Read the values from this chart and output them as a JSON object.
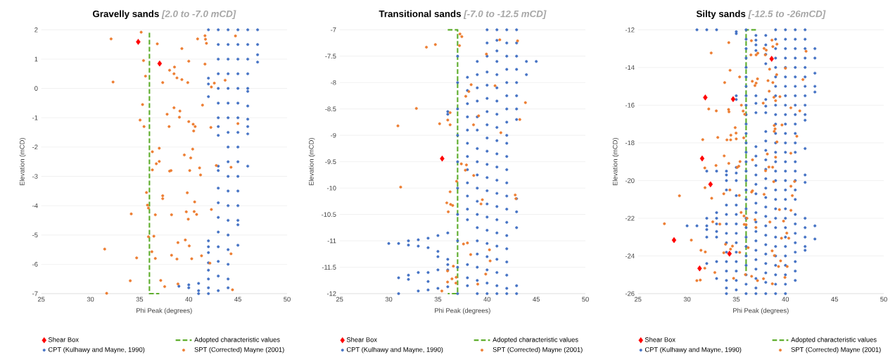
{
  "chart_data": [
    {
      "type": "scatter",
      "title": "Gravelly sands",
      "subtitle": "[2.0 to -7.0 mCD]",
      "xlabel": "Phi Peak (degrees)",
      "ylabel": "Elevation (mCD)",
      "xlim": [
        25,
        50
      ],
      "xticks": [
        25,
        30,
        35,
        40,
        45,
        50
      ],
      "ylim": [
        -7,
        2
      ],
      "yticks": [
        -7,
        -6,
        -5,
        -4,
        -3,
        -2,
        -1,
        0,
        1,
        2
      ],
      "grid": "y",
      "legend": "bottom",
      "series": [
        {
          "name": "Shear Box",
          "color": "#ff0000",
          "type": "scatter",
          "marker": "diamond",
          "x": [
            34.86,
            37.04
          ],
          "values": [
            1.59,
            0.85
          ]
        },
        {
          "name": "Adopted characteristic values",
          "color": "#5fae2e",
          "type": "line",
          "line_style": "dashed",
          "marker": "none",
          "x": [
            36,
            36,
            37
          ],
          "values": [
            1.9,
            -7,
            -7
          ]
        },
        {
          "name": "CPT (Kulhawy and Mayne, 1990)",
          "color": "#4472c4",
          "type": "scatter",
          "marker": "circle",
          "x": [
            39,
            40,
            40,
            41,
            41,
            41,
            42,
            42,
            42,
            42,
            42,
            42,
            42,
            42,
            42,
            42,
            42,
            42,
            43,
            43,
            43,
            43,
            43,
            43,
            43,
            43,
            43,
            43,
            43,
            43,
            43,
            43,
            43,
            43,
            43,
            43,
            43,
            44,
            44,
            44,
            44,
            44,
            44,
            44,
            44,
            44,
            44,
            44,
            44,
            44,
            44,
            44,
            44,
            44,
            44,
            44,
            45,
            45,
            45,
            45,
            45,
            45,
            45,
            45,
            45,
            45,
            45,
            45,
            45,
            45,
            45,
            45,
            46,
            46,
            46,
            46,
            46,
            46,
            46,
            46,
            46,
            46,
            46,
            47,
            47,
            47,
            47
          ],
          "values": [
            -6.75,
            -6.7,
            -6.8,
            -6.65,
            -6.9,
            -7,
            2,
            0.35,
            0.15,
            -0.28,
            -5.2,
            -5.4,
            -5.6,
            -5.95,
            -6.2,
            -6.5,
            -6.8,
            -7,
            2,
            1.5,
            1,
            0.5,
            0,
            -0.5,
            -1,
            -1.3,
            -1.6,
            -2.65,
            -2.8,
            -3.4,
            -3.9,
            -4.4,
            -4.9,
            -5.4,
            -5.9,
            -6.4,
            -6.9,
            2,
            1.5,
            1,
            0.5,
            0,
            -0.5,
            -1,
            -1.5,
            -2,
            -2.5,
            -3,
            -3.5,
            -4,
            -4.5,
            -5,
            -5.5,
            -6,
            -6.5,
            -6.8,
            2,
            1.5,
            1,
            0.5,
            0,
            -0.5,
            -1,
            -1.5,
            -2,
            -2.5,
            -3,
            -3.5,
            -4,
            -4.5,
            -4.65,
            -5.35,
            2,
            1.5,
            1,
            0.5,
            0,
            -0.1,
            -0.6,
            -1.05,
            -1.3,
            -1.55,
            -2.65,
            2,
            1.5,
            1.15,
            0.9
          ]
        },
        {
          "name": "SPT (Corrected) Mayne (2001)",
          "color": "#ed7d31",
          "type": "scatter",
          "marker": "circle",
          "x": [
            35.16,
            32.1,
            36.8,
            39.3,
            35.4,
            40.0,
            41.65,
            40.9,
            41.65,
            41.7,
            41.8,
            44.75,
            38.05,
            38.55,
            38.5,
            38.8,
            39.3,
            35.6,
            32.3,
            37.35,
            39.9,
            42.6,
            42.3,
            43.7,
            35.3,
            41.4,
            38.5,
            39.1,
            37.8,
            39.05,
            35.05,
            40.0,
            40.45,
            40.65,
            40.5,
            35.45,
            38.0,
            42.25,
            45.0,
            37.0,
            40.4,
            36.3,
            39.55,
            40.2,
            37.0,
            36.7,
            36.3,
            38.05,
            38.2,
            40.1,
            41.1,
            41.2,
            42.8,
            44.3,
            35.7,
            39.85,
            37.35,
            37.35,
            40.6,
            35.8,
            35.9,
            42.3,
            34.15,
            36.6,
            38.25,
            39.75,
            40.55,
            40.8,
            39.95,
            35.9,
            36.45,
            38.9,
            39.65,
            40.05,
            31.45,
            36.25,
            44.3,
            34.7,
            36.6,
            38.25,
            38.8,
            40.3,
            41.3,
            42.15,
            34.05,
            37.15,
            37.55,
            38.9,
            44.45,
            31.65
          ],
          "values": [
            1.92,
            1.69,
            1.52,
            1.36,
            0.95,
            0.93,
            0.83,
            1.69,
            1.8,
            1.68,
            1.54,
            1.79,
            0.62,
            0.73,
            0.5,
            0.36,
            0.3,
            0.42,
            0.22,
            0.2,
            0.2,
            0.18,
            0.05,
            0.28,
            -0.55,
            -0.57,
            -0.66,
            -0.77,
            -0.88,
            -0.98,
            -1.08,
            -1.13,
            -1.22,
            -1.3,
            -1.45,
            -1.3,
            -1.3,
            -1.33,
            -1.2,
            -2.04,
            -2.07,
            -2.16,
            -2.27,
            -2.37,
            -2.49,
            -2.57,
            -2.78,
            -2.82,
            -2.8,
            -2.8,
            -2.71,
            -2.95,
            -2.63,
            -2.69,
            -3.55,
            -3.56,
            -3.66,
            -3.76,
            -3.87,
            -3.98,
            -4.08,
            -4.13,
            -4.28,
            -4.31,
            -4.31,
            -4.21,
            -4.2,
            -4.3,
            -4.46,
            -5.06,
            -5.04,
            -5.26,
            -5.17,
            -5.37,
            -5.48,
            -5.57,
            -5.64,
            -5.78,
            -5.8,
            -5.69,
            -5.82,
            -5.81,
            -5.71,
            -5.96,
            -6.56,
            -6.55,
            -6.76,
            -6.67,
            -6.87,
            -6.99
          ]
        }
      ]
    },
    {
      "type": "scatter",
      "title": "Transitional sands",
      "subtitle": "[-7.0 to -12.5 mCD]",
      "xlabel": "Phi Peak (degrees)",
      "ylabel": "Elevation (mCD)",
      "xlim": [
        25,
        50
      ],
      "xticks": [
        25,
        30,
        35,
        40,
        45,
        50
      ],
      "ylim": [
        -12,
        -7
      ],
      "yticks": [
        -12,
        -11.5,
        -11,
        -10.5,
        -10,
        -9.5,
        -9,
        -8.5,
        -8,
        -7.5,
        -7
      ],
      "grid": "y",
      "legend": "bottom",
      "series": [
        {
          "name": "Shear Box",
          "color": "#ff0000",
          "type": "scatter",
          "marker": "diamond",
          "x": [
            35.43
          ],
          "values": [
            -9.44
          ]
        },
        {
          "name": "Adopted characteristic values",
          "color": "#5fae2e",
          "type": "line",
          "line_style": "dashed",
          "marker": "none",
          "x": [
            36,
            37,
            37,
            36
          ],
          "values": [
            -7,
            -7,
            -12,
            -12
          ]
        },
        {
          "name": "CPT (Kulhawy and Mayne, 1990)",
          "color": "#4472c4",
          "type": "scatter",
          "marker": "circle",
          "x": [
            30,
            31,
            31,
            31,
            32,
            32,
            32,
            32,
            33,
            33,
            33,
            33,
            34,
            34,
            34,
            34,
            34,
            35,
            35,
            35,
            35,
            35,
            36,
            36,
            36,
            36,
            36,
            36,
            36,
            37,
            37,
            37,
            37,
            37,
            37,
            37,
            37,
            37,
            37,
            38,
            38,
            38,
            38,
            38,
            38,
            38,
            38,
            38,
            38,
            38,
            38,
            38,
            38,
            38,
            39,
            39,
            39,
            39,
            39,
            39,
            39,
            39,
            39,
            39,
            39,
            39,
            39,
            39,
            39,
            39,
            39,
            39,
            40,
            40,
            40,
            40,
            40,
            40,
            40,
            40,
            40,
            40,
            40,
            40,
            40,
            40,
            40,
            40,
            40,
            40,
            40,
            40,
            40,
            41,
            41,
            41,
            41,
            41,
            41,
            41,
            41,
            41,
            41,
            41,
            41,
            41,
            41,
            41,
            41,
            41,
            41,
            41,
            41,
            41,
            41,
            42,
            42,
            42,
            42,
            42,
            42,
            42,
            42,
            42,
            42,
            42,
            42,
            42,
            42,
            42,
            42,
            42,
            42,
            42,
            42,
            42,
            42,
            43,
            43,
            43,
            43,
            43,
            43,
            43,
            43,
            43,
            43,
            43,
            43,
            43,
            44,
            44,
            45
          ],
          "values": [
            -11.05,
            -11.05,
            -11.7,
            -12,
            -11,
            -11.08,
            -11.65,
            -11.73,
            -10.98,
            -11.1,
            -11.6,
            -11.95,
            -10.95,
            -11.13,
            -11.6,
            -11.77,
            -11.93,
            -10.9,
            -11.2,
            -11.3,
            -11.55,
            -11.9,
            -8.55,
            -8.6,
            -10.85,
            -11.35,
            -11.45,
            -11.55,
            -11.87,
            -7.5,
            -8,
            -8.5,
            -9,
            -9.5,
            -10,
            -10.5,
            -11,
            -11.5,
            -12,
            -7.9,
            -8.15,
            -8.4,
            -8.65,
            -8.9,
            -9.15,
            -9.4,
            -9.65,
            -9.9,
            -10.15,
            -10.4,
            -10.6,
            -11.45,
            -11.7,
            -11.85,
            -7.6,
            -7.85,
            -8.1,
            -8.35,
            -8.65,
            -8.9,
            -9.25,
            -9.5,
            -9.75,
            -10,
            -10.25,
            -10.5,
            -10.75,
            -11,
            -11.25,
            -11.5,
            -11.75,
            -12,
            -7,
            -7.25,
            -7.5,
            -7.8,
            -8.05,
            -8.3,
            -8.55,
            -8.8,
            -9.05,
            -9.3,
            -9.55,
            -9.8,
            -10.05,
            -10.3,
            -10.55,
            -10.8,
            -11.05,
            -11.3,
            -11.55,
            -11.8,
            -12,
            -7,
            -7.2,
            -7.4,
            -7.6,
            -7.85,
            -8.1,
            -8.35,
            -8.6,
            -8.85,
            -9.1,
            -9.35,
            -9.6,
            -9.85,
            -10.1,
            -10.35,
            -10.6,
            -10.85,
            -11.1,
            -11.35,
            -11.6,
            -11.85,
            -12,
            -7,
            -7.25,
            -7.5,
            -7.75,
            -8,
            -8.25,
            -8.5,
            -8.75,
            -9,
            -9.15,
            -9.4,
            -9.65,
            -9.9,
            -10.15,
            -10.4,
            -10.65,
            -10.9,
            -11.15,
            -11.4,
            -11.65,
            -11.9,
            -12,
            -7,
            -7.25,
            -7.5,
            -7.75,
            -8,
            -8.25,
            -8.5,
            -8.7,
            -10.2,
            -10.45,
            -10.75,
            -11.85,
            -12,
            -7.6,
            -7.85,
            -7.6
          ]
        },
        {
          "name": "SPT (Corrected) Mayne (2001)",
          "color": "#ed7d31",
          "type": "scatter",
          "marker": "circle",
          "x": [
            37.24,
            37.43,
            37.19,
            33.83,
            34.74,
            41.29,
            43.1,
            39.93,
            40.81,
            38.38,
            38.14,
            37.83,
            43.9,
            32.81,
            36.24,
            36.0,
            35.17,
            36.24,
            30.93,
            39.14,
            38.62,
            43.33,
            41.4,
            37.38,
            37.9,
            37.79,
            38.64,
            36.9,
            31.21,
            36.24,
            35.9,
            36.29,
            36.5,
            36.05,
            39.52,
            39.38,
            42.86,
            42.93,
            37.6,
            38.0,
            40.24,
            38.33,
            40.31,
            36.57,
            39.86,
            35.98,
            36.43,
            36.86,
            35.98,
            36.83,
            39.05,
            35.4
          ],
          "values": [
            -7.08,
            -7.13,
            -7.3,
            -7.33,
            -7.28,
            -7.19,
            -7.21,
            -7.46,
            -8.06,
            -8.04,
            -8.17,
            -8.26,
            -8.38,
            -8.49,
            -8.57,
            -8.71,
            -8.78,
            -8.8,
            -8.82,
            -8.63,
            -8.8,
            -8.7,
            -8.95,
            -9.54,
            -9.56,
            -9.66,
            -9.76,
            -9.87,
            -9.98,
            -10.07,
            -10.28,
            -10.31,
            -10.33,
            -10.45,
            -10.22,
            -10.3,
            -10.13,
            -10.2,
            -11.06,
            -11.04,
            -11.17,
            -11.26,
            -11.38,
            -11.48,
            -11.63,
            -11.57,
            -11.72,
            -11.69,
            -11.78,
            -11.8,
            -11.82,
            -11.95
          ]
        }
      ]
    },
    {
      "type": "scatter",
      "title": "Silty sands",
      "subtitle": "[-12.5 to -26mCD]",
      "xlabel": "Phi Peak (degrees)",
      "ylabel": "Elevation (mCD)",
      "xlim": [
        25,
        50
      ],
      "xticks": [
        25,
        30,
        35,
        40,
        45,
        50
      ],
      "ylim": [
        -26,
        -12
      ],
      "yticks": [
        -26,
        -24,
        -22,
        -20,
        -18,
        -16,
        -14,
        -12
      ],
      "grid": "y",
      "legend": "bottom",
      "series": [
        {
          "name": "Shear Box",
          "color": "#ff0000",
          "type": "scatter",
          "marker": "diamond",
          "x": [
            31.85,
            34.68,
            38.6,
            31.53,
            32.38,
            28.67,
            34.31,
            31.27
          ],
          "values": [
            -15.59,
            -15.68,
            -13.54,
            -18.83,
            -20.2,
            -23.16,
            -23.88,
            -24.66
          ]
        },
        {
          "name": "Adopted characteristic values",
          "color": "#5fae2e",
          "type": "line",
          "line_style": "dashed",
          "marker": "none",
          "x": [
            37,
            36,
            36
          ],
          "values": [
            -12,
            -12,
            -24.8
          ]
        },
        {
          "name": "CPT (Kulhawy and Mayne, 1990)",
          "color": "#4472c4",
          "type": "scatter",
          "marker": "circle",
          "x": [
            30,
            31,
            31,
            32,
            32,
            32,
            32,
            32,
            32,
            32,
            33,
            33,
            33,
            33,
            33,
            33,
            33,
            33,
            33,
            34,
            34,
            34,
            34,
            34,
            34,
            34,
            34,
            34,
            34,
            34,
            34,
            34,
            34,
            34,
            35,
            35,
            35,
            35,
            35,
            35,
            35,
            35,
            35,
            35,
            35,
            35,
            35,
            35,
            35,
            35,
            35,
            35,
            36,
            36,
            36,
            36,
            36,
            36,
            36,
            36,
            36,
            36,
            36,
            36,
            36,
            36,
            36,
            36,
            36,
            36,
            36,
            36,
            36,
            36,
            36,
            36,
            36,
            36,
            36,
            36,
            36,
            37,
            37,
            37,
            37,
            37,
            37,
            37,
            37,
            37,
            37,
            37,
            37,
            37,
            37,
            37,
            37,
            37,
            37,
            37,
            37,
            37,
            37,
            37,
            37,
            38,
            38,
            38,
            38,
            38,
            38,
            38,
            38,
            38,
            38,
            38,
            38,
            38,
            38,
            38,
            38,
            38,
            38,
            38,
            38,
            38,
            38,
            38,
            38,
            38,
            39,
            39,
            39,
            39,
            39,
            39,
            39,
            39,
            39,
            39,
            39,
            39,
            39,
            39,
            39,
            39,
            39,
            39,
            39,
            39,
            39,
            39,
            39,
            39,
            39,
            39,
            39,
            39,
            39,
            40,
            40,
            40,
            40,
            40,
            40,
            40,
            40,
            40,
            40,
            40,
            40,
            40,
            40,
            40,
            40,
            40,
            40,
            40,
            40,
            40,
            40,
            40,
            40,
            40,
            40,
            40,
            40,
            40,
            41,
            41,
            41,
            41,
            41,
            41,
            41,
            41,
            41,
            41,
            41,
            41,
            41,
            41,
            41,
            41,
            41,
            41,
            41,
            41,
            41,
            41,
            41,
            41,
            41,
            41,
            41,
            42,
            42,
            42,
            42,
            42,
            42,
            42,
            42,
            42,
            42,
            42,
            42,
            42,
            42,
            42,
            42,
            42,
            42,
            42,
            43,
            43,
            43,
            43,
            43,
            43,
            43
          ],
          "values": [
            -22.4,
            -12,
            -22.4,
            -12,
            -19.5,
            -22,
            -22.4,
            -22.6,
            -23,
            -24.4,
            -12,
            -19.5,
            -21.7,
            -22,
            -22.3,
            -22.7,
            -23,
            -24.3,
            -25.2,
            -19.5,
            -19.7,
            -20,
            -20.5,
            -21.3,
            -21.8,
            -22.3,
            -22.8,
            -23.3,
            -23.8,
            -24.3,
            -24.8,
            -25.3,
            -25.7,
            -26,
            -12.1,
            -12.2,
            -15.5,
            -15.7,
            -19.3,
            -19.6,
            -20,
            -20.8,
            -21.3,
            -21.8,
            -22.3,
            -22.8,
            -23.3,
            -23.8,
            -24.3,
            -24.8,
            -25.3,
            -25.8,
            -12,
            -12.5,
            -13,
            -13.5,
            -14,
            -14.5,
            -15,
            -15.5,
            -16,
            -16.5,
            -17,
            -17.5,
            -18,
            -18.5,
            -19,
            -19.5,
            -20,
            -20.5,
            -21,
            -21.5,
            -22,
            -22.5,
            -23,
            -23.5,
            -24,
            -24.5,
            -25,
            -25.5,
            -26,
            -12.3,
            -12.55,
            -12.8,
            -13.1,
            -15.5,
            -15.9,
            -16.4,
            -18.2,
            -18.7,
            -19.2,
            -19.7,
            -20.2,
            -20.7,
            -21.2,
            -21.7,
            -22.2,
            -22.7,
            -23.2,
            -23.7,
            -24.2,
            -24.7,
            -25.2,
            -25.7,
            -26,
            -12.3,
            -12.8,
            -13.3,
            -13.8,
            -15.7,
            -16.05,
            -16.4,
            -17.4,
            -17.9,
            -18.4,
            -18.9,
            -19.4,
            -19.9,
            -20.4,
            -20.9,
            -21.4,
            -21.9,
            -22.4,
            -22.9,
            -23.4,
            -23.9,
            -24.4,
            -24.9,
            -25.4,
            -26,
            -12,
            -12.5,
            -13,
            -13.5,
            -14,
            -14.5,
            -15,
            -15.5,
            -16,
            -16.5,
            -17,
            -17.5,
            -18,
            -18.5,
            -19,
            -19.5,
            -20,
            -20.5,
            -21,
            -21.5,
            -22,
            -22.5,
            -23,
            -23.5,
            -24,
            -24.5,
            -25,
            -25.5,
            -26,
            -12,
            -12.5,
            -13,
            -13.5,
            -14,
            -14.5,
            -15,
            -15.5,
            -16,
            -16.5,
            -17,
            -17.5,
            -18,
            -18.5,
            -19,
            -19.5,
            -20,
            -20.5,
            -21,
            -21.5,
            -22,
            -22.5,
            -23,
            -23.5,
            -24,
            -24.5,
            -25,
            -25.5,
            -26,
            -12,
            -12.5,
            -13,
            -13.5,
            -14,
            -14.5,
            -15,
            -15.5,
            -16,
            -16.5,
            -17,
            -17.5,
            -18,
            -18.5,
            -19,
            -19.5,
            -20,
            -20.5,
            -21,
            -21.8,
            -22.3,
            -22.8,
            -23.3,
            -23.8,
            -24.3,
            -24.8,
            -25.3,
            -12,
            -12.5,
            -13,
            -13.5,
            -14,
            -14.5,
            -15,
            -15.5,
            -16,
            -16.5,
            -16.8,
            -18.3,
            -19.7,
            -20.1,
            -22,
            -22.5,
            -23,
            -23.5,
            -23.7,
            -13,
            -13.5,
            -14.3,
            -15,
            -15.3,
            -22.4,
            -23.1
          ]
        },
        {
          "name": "SPT (Corrected) Mayne (2001)",
          "color": "#ed7d31",
          "type": "scatter",
          "marker": "circle",
          "x": [
            34.24,
            32.45,
            36.54,
            37.19,
            36.49,
            37.02,
            37.83,
            38.05,
            37.95,
            38.63,
            38.72,
            39.14,
            42.1,
            34.37,
            35.34,
            33.82,
            36.63,
            37.16,
            37.02,
            36.9,
            40.0,
            38.39,
            39.11,
            38.23,
            38.35,
            38.72,
            41.78,
            38.83,
            39.44,
            39.0,
            37.74,
            35.52,
            35.7,
            35.86,
            34.22,
            34.26,
            32.2,
            32.97,
            40.55,
            41.46,
            34.89,
            34.98,
            34.45,
            33.12,
            35.0,
            34.05,
            34.43,
            31.59,
            35.76,
            38.86,
            38.95,
            38.86,
            39.65,
            41.16,
            39.14,
            33.77,
            34.24,
            35.38,
            35.26,
            35.1,
            31.8,
            32.94,
            36.65,
            38.16,
            38.32,
            38.7,
            37.98,
            39.0,
            40.55,
            38.81,
            31.82,
            32.5,
            34.35,
            33.73,
            35.31,
            36.56,
            36.65,
            37.83,
            40.56,
            40.93,
            40.7,
            29.22,
            39.39,
            40.56,
            35.49,
            35.79,
            36.09,
            36.91,
            39.81,
            38.42,
            32.61,
            33.33,
            35.81,
            36.0,
            37.0,
            27.69,
            30.43,
            40.14,
            39.6,
            40.34,
            36.21,
            33.91,
            31.41,
            34.42,
            34.61,
            35.35,
            31.85,
            33.73,
            38.65,
            38.88,
            39.51,
            39.3,
            40.18,
            31.8,
            32.82,
            35.93,
            36.56,
            34.73,
            37.16,
            37.77,
            39.95,
            30.99,
            31.34,
            38.67
          ],
          "values": [
            -12.68,
            -13.23,
            -12.58,
            -13.24,
            -13.33,
            -13.33,
            -12.99,
            -13.08,
            -13.33,
            -12.55,
            -12.89,
            -12.76,
            -13.14,
            -14.15,
            -14.5,
            -14.8,
            -14.73,
            -14.6,
            -14.83,
            -14.96,
            -14.04,
            -14.09,
            -14.38,
            -14.7,
            -15.26,
            -14.8,
            -14.64,
            -15.58,
            -15.55,
            -15.76,
            -15.89,
            -16.0,
            -16.31,
            -16.48,
            -16.23,
            -16.35,
            -16.2,
            -16.3,
            -16.14,
            -16.3,
            -17.19,
            -17.48,
            -17.59,
            -17.71,
            -17.79,
            -17.84,
            -17.84,
            -17.83,
            -17.73,
            -17.08,
            -17.26,
            -17.39,
            -17.05,
            -17.65,
            -17.95,
            -18.69,
            -19.09,
            -18.99,
            -19.24,
            -19.3,
            -19.33,
            -19.2,
            -18.9,
            -18.59,
            -19.28,
            -19.29,
            -19.48,
            -18.76,
            -18.55,
            -20.06,
            -20.38,
            -20.94,
            -20.5,
            -20.7,
            -20.79,
            -20.61,
            -20.54,
            -20.73,
            -20.3,
            -20.05,
            -20.8,
            -20.81,
            -21.54,
            -21.58,
            -21.69,
            -21.88,
            -22.0,
            -22.08,
            -22.15,
            -22.2,
            -22.19,
            -22.31,
            -22.33,
            -22.34,
            -22.49,
            -22.29,
            -23.16,
            -22.79,
            -23.06,
            -23.06,
            -23.56,
            -23.38,
            -23.7,
            -23.64,
            -23.48,
            -23.81,
            -23.79,
            -23.83,
            -23.73,
            -23.98,
            -24.26,
            -24.56,
            -24.56,
            -24.65,
            -24.88,
            -24.99,
            -25.08,
            -25.19,
            -25.31,
            -25.21,
            -25.14,
            -25.31,
            -25.28,
            -25.48
          ]
        }
      ]
    }
  ]
}
